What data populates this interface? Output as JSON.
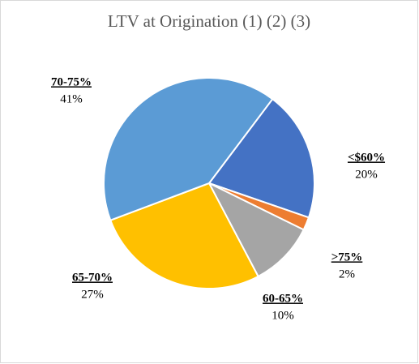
{
  "chart_data": {
    "type": "pie",
    "title": "LTV at Origination (1) (2) (3)",
    "categories": [
      "<$60%",
      ">75%",
      "60-65%",
      "65-70%",
      "70-75%"
    ],
    "values": [
      20,
      2,
      10,
      27,
      41
    ],
    "value_labels": [
      "20%",
      "2%",
      "10%",
      "27%",
      "41%"
    ],
    "colors": [
      "#4472c4",
      "#ed7d31",
      "#a5a5a5",
      "#ffc000",
      "#5b9bd5"
    ]
  }
}
